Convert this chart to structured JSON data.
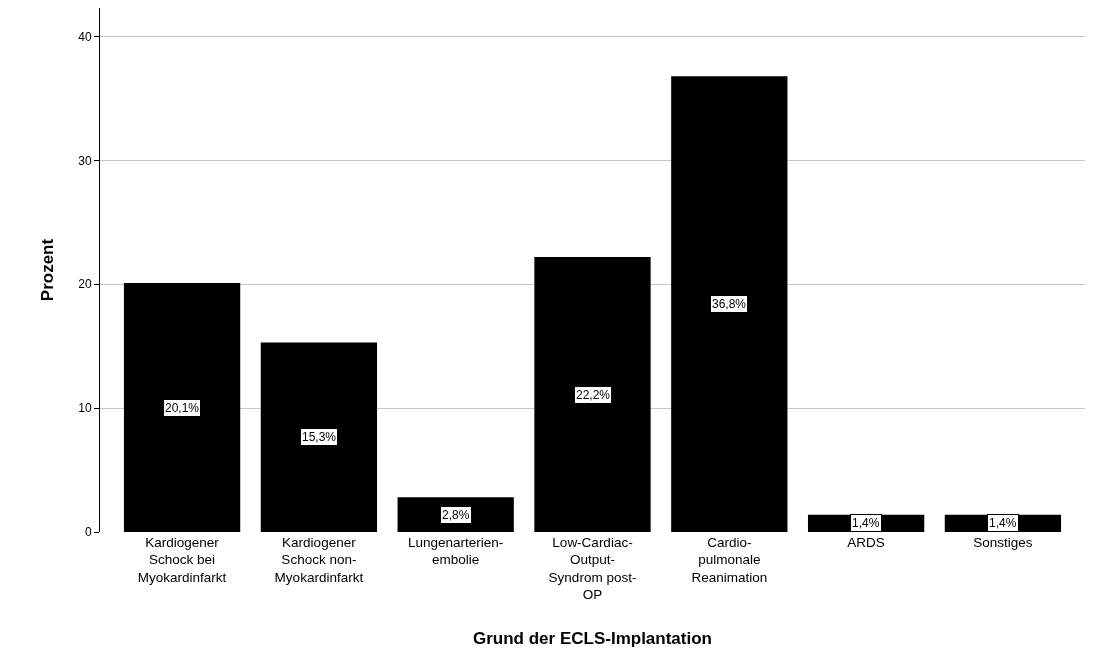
{
  "chart_data": {
    "type": "bar",
    "xlabel": "Grund der ECLS-Implantation",
    "ylabel": "Prozent",
    "categories": [
      "Kardiogener Schock bei Myokardinfarkt",
      "Kardiogener Schock non-Myokardinfarkt",
      "Lungenarterien-embolie",
      "Low-Cardiac-Output-Syndrom post-OP",
      "Cardio-pulmonale Reanimation",
      "ARDS",
      "Sonstiges"
    ],
    "values": [
      20.1,
      15.3,
      2.8,
      22.2,
      36.8,
      1.4,
      1.4
    ],
    "value_labels": [
      "20,1%",
      "15,3%",
      "2,8%",
      "22,2%",
      "36,8%",
      "1,4%",
      "1,4%"
    ],
    "color": "#000000",
    "ylim": [
      0,
      42.3
    ],
    "yticks": [
      0,
      10,
      20,
      30,
      40
    ],
    "grid": "y"
  }
}
